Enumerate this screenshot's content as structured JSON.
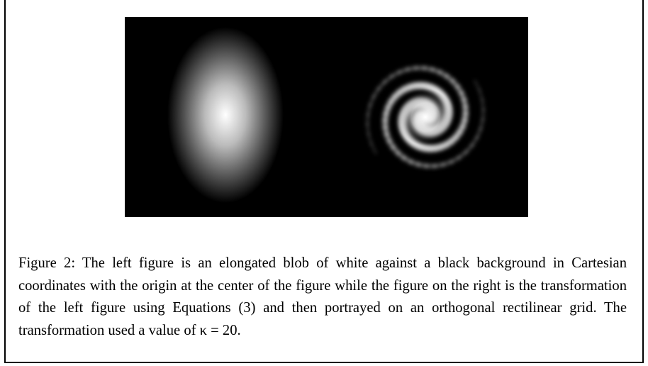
{
  "figure": {
    "caption": "Figure 2:  The left figure is an elongated blob of white against a black background in Cartesian coordinates with the origin at the center of the figure while the figure on the right is the transformation of the left figure using Equations (3) and then portrayed on an orthogonal rectilinear grid. The transformation used a value of κ = 20."
  }
}
